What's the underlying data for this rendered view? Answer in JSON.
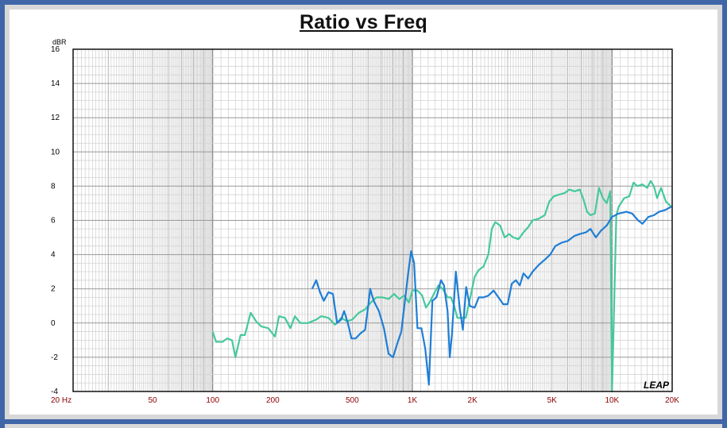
{
  "chart_data": {
    "type": "line",
    "title": "Ratio vs Freq",
    "y_unit": "dBR",
    "x_scale": "log",
    "xlim": [
      20,
      20000
    ],
    "ylim": [
      -4,
      16
    ],
    "grid": true,
    "x_tick_labels": [
      {
        "value": 20,
        "label": "20  Hz"
      },
      {
        "value": 50,
        "label": "50"
      },
      {
        "value": 100,
        "label": "100"
      },
      {
        "value": 200,
        "label": "200"
      },
      {
        "value": 500,
        "label": "500"
      },
      {
        "value": 1000,
        "label": "1K"
      },
      {
        "value": 2000,
        "label": "2K"
      },
      {
        "value": 5000,
        "label": "5K"
      },
      {
        "value": 10000,
        "label": "10K"
      },
      {
        "value": 20000,
        "label": "20K"
      }
    ],
    "y_ticks": [
      -4,
      -2,
      0,
      2,
      4,
      6,
      8,
      10,
      12,
      14,
      16
    ],
    "logo_text": "LEAP",
    "series": [
      {
        "color": "#45c99c",
        "points": [
          [
            100,
            -0.5
          ],
          [
            104,
            -1.1
          ],
          [
            112,
            -1.1
          ],
          [
            118,
            -0.9
          ],
          [
            125,
            -1.0
          ],
          [
            130,
            -2.0
          ],
          [
            138,
            -0.7
          ],
          [
            145,
            -0.7
          ],
          [
            155,
            0.6
          ],
          [
            165,
            0.1
          ],
          [
            175,
            -0.2
          ],
          [
            190,
            -0.3
          ],
          [
            205,
            -0.8
          ],
          [
            215,
            0.4
          ],
          [
            230,
            0.3
          ],
          [
            245,
            -0.3
          ],
          [
            258,
            0.4
          ],
          [
            275,
            0.0
          ],
          [
            300,
            0.0
          ],
          [
            330,
            0.2
          ],
          [
            350,
            0.4
          ],
          [
            380,
            0.3
          ],
          [
            410,
            -0.1
          ],
          [
            440,
            0.3
          ],
          [
            470,
            0.1
          ],
          [
            500,
            0.2
          ],
          [
            540,
            0.6
          ],
          [
            580,
            0.8
          ],
          [
            620,
            1.2
          ],
          [
            660,
            1.5
          ],
          [
            710,
            1.5
          ],
          [
            760,
            1.4
          ],
          [
            810,
            1.7
          ],
          [
            860,
            1.4
          ],
          [
            910,
            1.6
          ],
          [
            960,
            1.2
          ],
          [
            1000,
            1.9
          ],
          [
            1060,
            1.9
          ],
          [
            1120,
            1.6
          ],
          [
            1170,
            0.9
          ],
          [
            1220,
            1.2
          ],
          [
            1280,
            1.7
          ],
          [
            1350,
            2.2
          ],
          [
            1420,
            2.0
          ],
          [
            1500,
            1.5
          ],
          [
            1560,
            1.5
          ],
          [
            1620,
            1.0
          ],
          [
            1680,
            0.3
          ],
          [
            1760,
            0.3
          ],
          [
            1850,
            0.3
          ],
          [
            1950,
            1.5
          ],
          [
            2050,
            2.7
          ],
          [
            2150,
            3.1
          ],
          [
            2270,
            3.3
          ],
          [
            2400,
            4.0
          ],
          [
            2500,
            5.5
          ],
          [
            2600,
            5.9
          ],
          [
            2750,
            5.7
          ],
          [
            2900,
            5.0
          ],
          [
            3050,
            5.2
          ],
          [
            3200,
            5.0
          ],
          [
            3400,
            4.9
          ],
          [
            3600,
            5.3
          ],
          [
            3800,
            5.6
          ],
          [
            4000,
            6.0
          ],
          [
            4300,
            6.1
          ],
          [
            4600,
            6.3
          ],
          [
            4850,
            7.1
          ],
          [
            5100,
            7.4
          ],
          [
            5400,
            7.5
          ],
          [
            5800,
            7.6
          ],
          [
            6100,
            7.8
          ],
          [
            6500,
            7.7
          ],
          [
            6900,
            7.8
          ],
          [
            7200,
            7.2
          ],
          [
            7500,
            6.5
          ],
          [
            7800,
            6.3
          ],
          [
            8200,
            6.4
          ],
          [
            8600,
            7.9
          ],
          [
            9000,
            7.3
          ],
          [
            9400,
            7.0
          ],
          [
            9800,
            7.7
          ],
          [
            10000,
            -4.0
          ],
          [
            10500,
            6.3
          ],
          [
            10800,
            6.8
          ],
          [
            11500,
            7.3
          ],
          [
            12200,
            7.4
          ],
          [
            12800,
            8.2
          ],
          [
            13400,
            8.0
          ],
          [
            14200,
            8.1
          ],
          [
            15000,
            7.9
          ],
          [
            15600,
            8.3
          ],
          [
            16200,
            8.0
          ],
          [
            16800,
            7.3
          ],
          [
            17600,
            7.9
          ],
          [
            18600,
            7.1
          ],
          [
            19800,
            6.8
          ]
        ]
      },
      {
        "color": "#1f7ed6",
        "points": [
          [
            315,
            2.0
          ],
          [
            330,
            2.5
          ],
          [
            345,
            1.8
          ],
          [
            360,
            1.3
          ],
          [
            380,
            1.8
          ],
          [
            400,
            1.7
          ],
          [
            420,
            0.0
          ],
          [
            440,
            0.2
          ],
          [
            455,
            0.7
          ],
          [
            475,
            0.0
          ],
          [
            495,
            -0.9
          ],
          [
            520,
            -0.9
          ],
          [
            550,
            -0.6
          ],
          [
            580,
            -0.4
          ],
          [
            600,
            0.9
          ],
          [
            615,
            2.0
          ],
          [
            640,
            1.3
          ],
          [
            680,
            0.7
          ],
          [
            720,
            -0.3
          ],
          [
            760,
            -1.8
          ],
          [
            800,
            -2.0
          ],
          [
            840,
            -1.2
          ],
          [
            880,
            -0.5
          ],
          [
            920,
            1.4
          ],
          [
            955,
            3.0
          ],
          [
            985,
            4.2
          ],
          [
            1020,
            3.5
          ],
          [
            1060,
            -0.3
          ],
          [
            1110,
            -0.3
          ],
          [
            1160,
            -1.5
          ],
          [
            1210,
            -3.6
          ],
          [
            1260,
            1.3
          ],
          [
            1320,
            1.5
          ],
          [
            1390,
            2.5
          ],
          [
            1440,
            2.2
          ],
          [
            1500,
            0.7
          ],
          [
            1540,
            -2.0
          ],
          [
            1580,
            -0.6
          ],
          [
            1650,
            3.0
          ],
          [
            1730,
            0.8
          ],
          [
            1790,
            -0.4
          ],
          [
            1860,
            2.1
          ],
          [
            1940,
            1.0
          ],
          [
            2050,
            0.9
          ],
          [
            2150,
            1.5
          ],
          [
            2270,
            1.5
          ],
          [
            2400,
            1.6
          ],
          [
            2550,
            1.9
          ],
          [
            2700,
            1.5
          ],
          [
            2850,
            1.1
          ],
          [
            3000,
            1.1
          ],
          [
            3150,
            2.3
          ],
          [
            3300,
            2.5
          ],
          [
            3450,
            2.2
          ],
          [
            3600,
            2.9
          ],
          [
            3800,
            2.6
          ],
          [
            4000,
            3.0
          ],
          [
            4300,
            3.4
          ],
          [
            4600,
            3.7
          ],
          [
            4900,
            4.0
          ],
          [
            5200,
            4.5
          ],
          [
            5600,
            4.7
          ],
          [
            6000,
            4.8
          ],
          [
            6500,
            5.1
          ],
          [
            6900,
            5.2
          ],
          [
            7400,
            5.3
          ],
          [
            7800,
            5.5
          ],
          [
            8300,
            5.0
          ],
          [
            8800,
            5.4
          ],
          [
            9400,
            5.7
          ],
          [
            10000,
            6.2
          ],
          [
            10800,
            6.4
          ],
          [
            11800,
            6.5
          ],
          [
            12600,
            6.4
          ],
          [
            13500,
            6.0
          ],
          [
            14200,
            5.8
          ],
          [
            15200,
            6.2
          ],
          [
            16200,
            6.3
          ],
          [
            17200,
            6.5
          ],
          [
            18400,
            6.6
          ],
          [
            19800,
            6.8
          ]
        ]
      }
    ]
  }
}
